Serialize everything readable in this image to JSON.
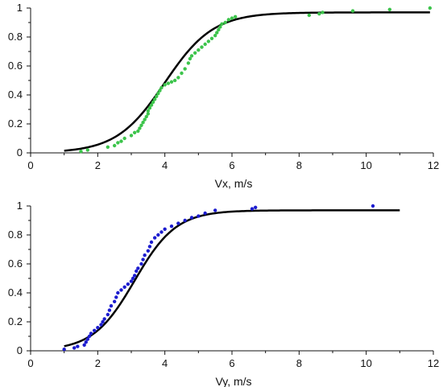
{
  "chart_data": [
    {
      "type": "scatter",
      "xlabel": "Vx, m/s",
      "ylabel": "",
      "xlim": [
        0,
        12
      ],
      "ylim": [
        0,
        1
      ],
      "xticks": [
        "0",
        "2",
        "4",
        "6",
        "8",
        "10",
        "12"
      ],
      "yticks": [
        "0",
        "0.2",
        "0.4",
        "0.6",
        "0.8",
        "1"
      ],
      "grid": false,
      "series": [
        {
          "kind": "scatter",
          "color": "#3cc44b",
          "points": [
            [
              1.5,
              0.01
            ],
            [
              1.7,
              0.02
            ],
            [
              2.3,
              0.04
            ],
            [
              2.5,
              0.05
            ],
            [
              2.6,
              0.07
            ],
            [
              2.7,
              0.08
            ],
            [
              2.8,
              0.1
            ],
            [
              3.0,
              0.12
            ],
            [
              3.1,
              0.14
            ],
            [
              3.2,
              0.15
            ],
            [
              3.25,
              0.17
            ],
            [
              3.3,
              0.19
            ],
            [
              3.35,
              0.21
            ],
            [
              3.4,
              0.23
            ],
            [
              3.45,
              0.25
            ],
            [
              3.5,
              0.27
            ],
            [
              3.5,
              0.29
            ],
            [
              3.55,
              0.31
            ],
            [
              3.6,
              0.33
            ],
            [
              3.65,
              0.35
            ],
            [
              3.7,
              0.37
            ],
            [
              3.75,
              0.39
            ],
            [
              3.8,
              0.41
            ],
            [
              3.85,
              0.43
            ],
            [
              3.9,
              0.45
            ],
            [
              4.0,
              0.47
            ],
            [
              4.1,
              0.48
            ],
            [
              4.2,
              0.49
            ],
            [
              4.3,
              0.5
            ],
            [
              4.4,
              0.52
            ],
            [
              4.5,
              0.55
            ],
            [
              4.6,
              0.58
            ],
            [
              4.7,
              0.62
            ],
            [
              4.75,
              0.65
            ],
            [
              4.8,
              0.67
            ],
            [
              4.9,
              0.69
            ],
            [
              5.0,
              0.71
            ],
            [
              5.1,
              0.73
            ],
            [
              5.2,
              0.75
            ],
            [
              5.3,
              0.77
            ],
            [
              5.4,
              0.79
            ],
            [
              5.5,
              0.81
            ],
            [
              5.55,
              0.83
            ],
            [
              5.6,
              0.85
            ],
            [
              5.65,
              0.87
            ],
            [
              5.7,
              0.89
            ],
            [
              5.8,
              0.9
            ],
            [
              5.9,
              0.92
            ],
            [
              6.0,
              0.93
            ],
            [
              6.1,
              0.94
            ],
            [
              8.3,
              0.95
            ],
            [
              8.6,
              0.96
            ],
            [
              8.7,
              0.97
            ],
            [
              9.6,
              0.98
            ],
            [
              10.7,
              0.99
            ],
            [
              11.9,
              1.0
            ]
          ]
        },
        {
          "kind": "line",
          "color": "#000000",
          "function": "sigmoid",
          "params": {
            "max": 0.97,
            "mid": 4.0,
            "scale": 0.72
          },
          "x_range": [
            1,
            11.9
          ]
        }
      ]
    },
    {
      "type": "scatter",
      "xlabel": "Vy, m/s",
      "ylabel": "",
      "xlim": [
        0,
        12
      ],
      "ylim": [
        0,
        1
      ],
      "xticks": [
        "0",
        "2",
        "4",
        "6",
        "8",
        "10",
        "12"
      ],
      "yticks": [
        "0",
        "0.2",
        "0.4",
        "0.6",
        "0.8",
        "1"
      ],
      "grid": false,
      "series": [
        {
          "kind": "scatter",
          "color": "#1c1ccf",
          "points": [
            [
              1.0,
              0.01
            ],
            [
              1.3,
              0.02
            ],
            [
              1.4,
              0.03
            ],
            [
              1.6,
              0.04
            ],
            [
              1.65,
              0.06
            ],
            [
              1.7,
              0.08
            ],
            [
              1.75,
              0.1
            ],
            [
              1.8,
              0.12
            ],
            [
              1.9,
              0.14
            ],
            [
              2.0,
              0.16
            ],
            [
              2.1,
              0.18
            ],
            [
              2.15,
              0.2
            ],
            [
              2.2,
              0.22
            ],
            [
              2.3,
              0.25
            ],
            [
              2.35,
              0.28
            ],
            [
              2.4,
              0.31
            ],
            [
              2.5,
              0.34
            ],
            [
              2.55,
              0.37
            ],
            [
              2.6,
              0.4
            ],
            [
              2.7,
              0.42
            ],
            [
              2.8,
              0.44
            ],
            [
              2.9,
              0.46
            ],
            [
              3.0,
              0.48
            ],
            [
              3.05,
              0.5
            ],
            [
              3.1,
              0.52
            ],
            [
              3.15,
              0.55
            ],
            [
              3.2,
              0.57
            ],
            [
              3.3,
              0.6
            ],
            [
              3.35,
              0.63
            ],
            [
              3.4,
              0.66
            ],
            [
              3.5,
              0.69
            ],
            [
              3.55,
              0.72
            ],
            [
              3.6,
              0.75
            ],
            [
              3.7,
              0.78
            ],
            [
              3.8,
              0.8
            ],
            [
              3.9,
              0.82
            ],
            [
              4.0,
              0.84
            ],
            [
              4.2,
              0.86
            ],
            [
              4.4,
              0.88
            ],
            [
              4.6,
              0.9
            ],
            [
              4.8,
              0.92
            ],
            [
              5.0,
              0.93
            ],
            [
              5.2,
              0.95
            ],
            [
              5.5,
              0.97
            ],
            [
              6.6,
              0.98
            ],
            [
              6.7,
              0.99
            ],
            [
              10.2,
              1.0
            ]
          ]
        },
        {
          "kind": "line",
          "color": "#000000",
          "function": "sigmoid",
          "params": {
            "max": 0.97,
            "mid": 3.1,
            "scale": 0.62
          },
          "x_range": [
            1,
            11
          ]
        }
      ]
    }
  ]
}
